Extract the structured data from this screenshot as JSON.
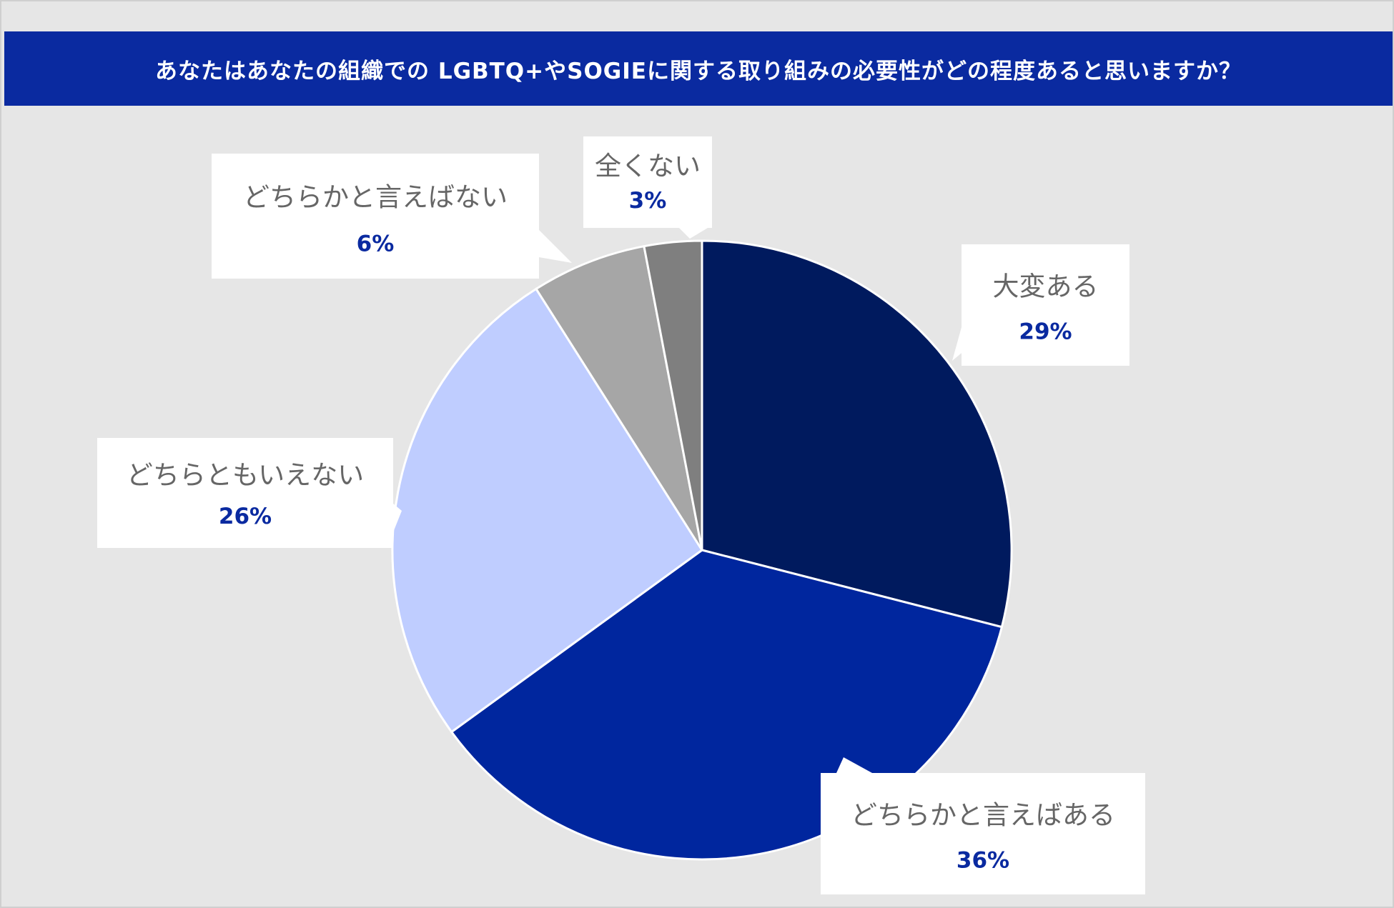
{
  "chart_data": {
    "type": "pie",
    "title": "あなたはあなたの組織での LGBTQ+やSOGIEに関する取り組みの必要性がどの程度あると思いますか？",
    "slices": [
      {
        "label": "大変ある",
        "value": 29,
        "value_label": "29%",
        "color": "#001a5e"
      },
      {
        "label": "どちらかと言えばある",
        "value": 36,
        "value_label": "36%",
        "color": "#00269e"
      },
      {
        "label": "どちらともいえない",
        "value": 26,
        "value_label": "26%",
        "color": "#bfcdff"
      },
      {
        "label": "どちらかと言えばない",
        "value": 6,
        "value_label": "6%",
        "color": "#a6a6a6"
      },
      {
        "label": "全くない",
        "value": 3,
        "value_label": "3%",
        "color": "#7f7f7f"
      }
    ],
    "start": "12-o'clock",
    "direction": "clockwise",
    "label_color": "#666666",
    "value_color": "#0a2aa0",
    "background": "#e6e6e6"
  }
}
